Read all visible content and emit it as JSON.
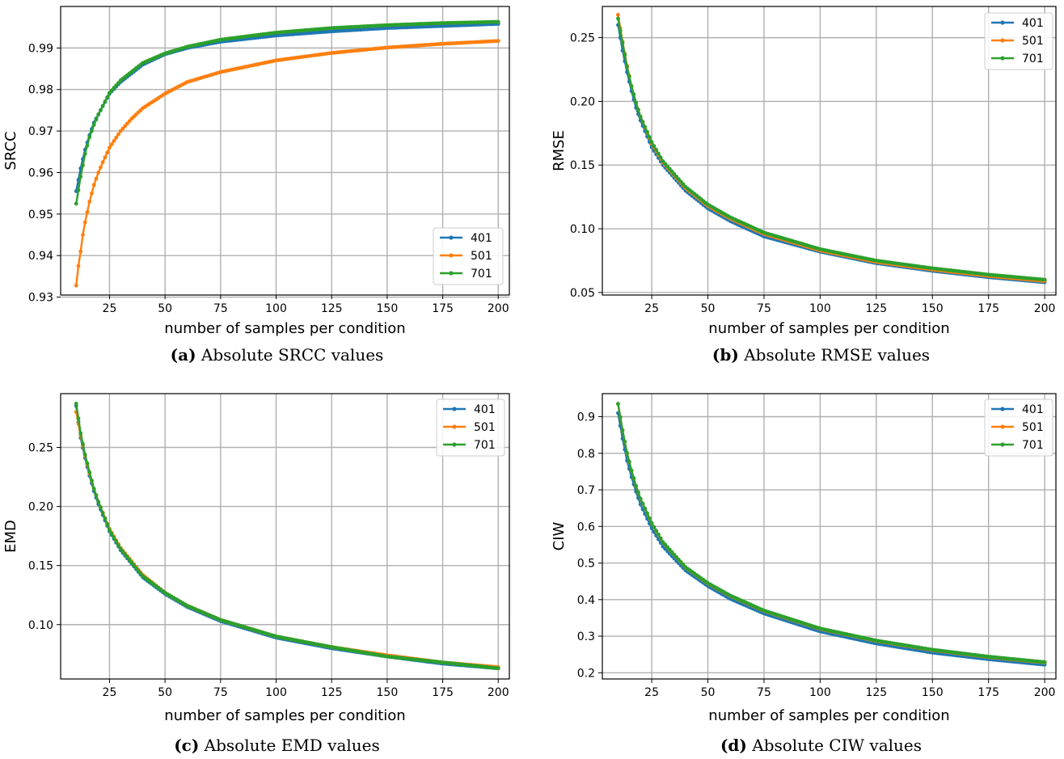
{
  "colors": {
    "401": "#1f77b4",
    "501": "#ff7f0e",
    "701": "#2ca02c"
  },
  "chart_data": [
    {
      "id": "a",
      "type": "line",
      "caption": {
        "tag": "(a)",
        "text": "Absolute SRCC values"
      },
      "xlabel": "number of samples per condition",
      "ylabel": "SRCC",
      "xlim": [
        3,
        205
      ],
      "ylim": [
        0.9305,
        1.0
      ],
      "xticks": [
        25,
        50,
        75,
        100,
        125,
        150,
        175,
        200
      ],
      "yticks": [
        0.93,
        0.94,
        0.95,
        0.96,
        0.97,
        0.98,
        0.99
      ],
      "ytick_labels": [
        "0.93",
        "0.94",
        "0.95",
        "0.96",
        "0.97",
        "0.98",
        "0.99"
      ],
      "grid": true,
      "legend_position": "lower-right",
      "x_range": [
        10,
        200
      ],
      "series": [
        {
          "name": "401",
          "key": "401",
          "x": [
            10,
            12,
            14,
            16,
            18,
            20,
            25,
            30,
            40,
            50,
            60,
            75,
            100,
            125,
            150,
            175,
            200
          ],
          "y": [
            0.9555,
            0.961,
            0.9655,
            0.969,
            0.972,
            0.974,
            0.979,
            0.9818,
            0.986,
            0.9885,
            0.99,
            0.9915,
            0.993,
            0.994,
            0.9948,
            0.9953,
            0.9958
          ]
        },
        {
          "name": "501",
          "key": "501",
          "x": [
            10,
            11,
            12,
            13,
            14,
            15,
            16,
            18,
            20,
            22,
            25,
            30,
            35,
            40,
            50,
            60,
            75,
            100,
            125,
            150,
            175,
            200
          ],
          "y": [
            0.9328,
            0.9375,
            0.941,
            0.945,
            0.948,
            0.9505,
            0.953,
            0.957,
            0.96,
            0.9625,
            0.966,
            0.97,
            0.973,
            0.9755,
            0.979,
            0.9818,
            0.9842,
            0.987,
            0.9888,
            0.9901,
            0.991,
            0.9917
          ]
        },
        {
          "name": "701",
          "key": "701",
          "x": [
            10,
            12,
            14,
            16,
            18,
            20,
            25,
            30,
            40,
            50,
            60,
            75,
            100,
            125,
            150,
            175,
            200
          ],
          "y": [
            0.9525,
            0.959,
            0.9645,
            0.9685,
            0.9715,
            0.974,
            0.9792,
            0.9822,
            0.9864,
            0.9887,
            0.9903,
            0.992,
            0.9937,
            0.9948,
            0.9955,
            0.996,
            0.9963
          ]
        }
      ]
    },
    {
      "id": "b",
      "type": "line",
      "caption": {
        "tag": "(b)",
        "text": "Absolute RMSE values"
      },
      "xlabel": "number of samples per condition",
      "ylabel": "RMSE",
      "xlim": [
        3,
        205
      ],
      "ylim": [
        0.048,
        0.2745
      ],
      "xticks": [
        25,
        50,
        75,
        100,
        125,
        150,
        175,
        200
      ],
      "yticks": [
        0.05,
        0.1,
        0.15,
        0.2,
        0.25
      ],
      "ytick_labels": [
        "0.05",
        "0.10",
        "0.15",
        "0.20",
        "0.25"
      ],
      "grid": true,
      "legend_position": "upper-right",
      "x_range": [
        10,
        200
      ],
      "series": [
        {
          "name": "401",
          "key": "401",
          "x": [
            10,
            12,
            14,
            16,
            18,
            20,
            25,
            30,
            40,
            50,
            60,
            75,
            100,
            125,
            150,
            175,
            200
          ],
          "y": [
            0.26,
            0.24,
            0.223,
            0.208,
            0.195,
            0.185,
            0.164,
            0.15,
            0.13,
            0.116,
            0.106,
            0.094,
            0.082,
            0.073,
            0.067,
            0.062,
            0.058
          ]
        },
        {
          "name": "501",
          "key": "501",
          "x": [
            10,
            12,
            14,
            16,
            18,
            20,
            25,
            30,
            40,
            50,
            60,
            75,
            100,
            125,
            150,
            175,
            200
          ],
          "y": [
            0.268,
            0.247,
            0.228,
            0.212,
            0.199,
            0.188,
            0.167,
            0.152,
            0.132,
            0.118,
            0.108,
            0.096,
            0.083,
            0.074,
            0.068,
            0.063,
            0.059
          ]
        },
        {
          "name": "701",
          "key": "701",
          "x": [
            10,
            12,
            14,
            16,
            18,
            20,
            25,
            30,
            40,
            50,
            60,
            75,
            100,
            125,
            150,
            175,
            200
          ],
          "y": [
            0.265,
            0.246,
            0.227,
            0.212,
            0.199,
            0.188,
            0.168,
            0.153,
            0.133,
            0.119,
            0.109,
            0.097,
            0.084,
            0.075,
            0.069,
            0.064,
            0.06
          ]
        }
      ]
    },
    {
      "id": "c",
      "type": "line",
      "caption": {
        "tag": "(c)",
        "text": "Absolute EMD values"
      },
      "xlabel": "number of samples per condition",
      "ylabel": "EMD",
      "xlim": [
        3,
        205
      ],
      "ylim": [
        0.054,
        0.2955
      ],
      "xticks": [
        25,
        50,
        75,
        100,
        125,
        150,
        175,
        200
      ],
      "yticks": [
        0.1,
        0.15,
        0.2,
        0.25
      ],
      "ytick_labels": [
        "0.10",
        "0.15",
        "0.20",
        "0.25"
      ],
      "grid": true,
      "legend_position": "upper-right",
      "x_range": [
        10,
        200
      ],
      "series": [
        {
          "name": "401",
          "key": "401",
          "x": [
            10,
            12,
            14,
            16,
            18,
            20,
            25,
            30,
            40,
            50,
            60,
            75,
            100,
            125,
            150,
            175,
            200
          ],
          "y": [
            0.285,
            0.258,
            0.241,
            0.226,
            0.213,
            0.202,
            0.179,
            0.163,
            0.14,
            0.126,
            0.115,
            0.103,
            0.089,
            0.08,
            0.073,
            0.067,
            0.063
          ]
        },
        {
          "name": "501",
          "key": "501",
          "x": [
            10,
            12,
            14,
            16,
            18,
            20,
            25,
            30,
            40,
            50,
            60,
            75,
            100,
            125,
            150,
            175,
            200
          ],
          "y": [
            0.28,
            0.26,
            0.243,
            0.228,
            0.215,
            0.204,
            0.181,
            0.165,
            0.142,
            0.127,
            0.116,
            0.104,
            0.09,
            0.081,
            0.074,
            0.068,
            0.064
          ]
        },
        {
          "name": "701",
          "key": "701",
          "x": [
            10,
            12,
            14,
            16,
            18,
            20,
            25,
            30,
            40,
            50,
            60,
            75,
            100,
            125,
            150,
            175,
            200
          ],
          "y": [
            0.287,
            0.262,
            0.244,
            0.229,
            0.215,
            0.204,
            0.18,
            0.164,
            0.141,
            0.127,
            0.116,
            0.104,
            0.09,
            0.081,
            0.073,
            0.068,
            0.063
          ]
        }
      ]
    },
    {
      "id": "d",
      "type": "line",
      "caption": {
        "tag": "(d)",
        "text": "Absolute CIW values"
      },
      "xlabel": "number of samples per condition",
      "ylabel": "CIW",
      "xlim": [
        3,
        205
      ],
      "ylim": [
        0.183,
        0.963
      ],
      "xticks": [
        25,
        50,
        75,
        100,
        125,
        150,
        175,
        200
      ],
      "yticks": [
        0.2,
        0.3,
        0.4,
        0.5,
        0.6,
        0.7,
        0.8,
        0.9
      ],
      "ytick_labels": [
        "0.2",
        "0.3",
        "0.4",
        "0.5",
        "0.6",
        "0.7",
        "0.8",
        "0.9"
      ],
      "grid": true,
      "legend_position": "upper-right",
      "x_range": [
        10,
        200
      ],
      "series": [
        {
          "name": "401",
          "key": "401",
          "x": [
            10,
            12,
            14,
            16,
            18,
            20,
            25,
            30,
            40,
            50,
            60,
            75,
            100,
            125,
            150,
            175,
            200
          ],
          "y": [
            0.91,
            0.84,
            0.78,
            0.735,
            0.695,
            0.66,
            0.595,
            0.545,
            0.48,
            0.437,
            0.402,
            0.362,
            0.313,
            0.28,
            0.255,
            0.237,
            0.222
          ]
        },
        {
          "name": "501",
          "key": "501",
          "x": [
            10,
            12,
            14,
            16,
            18,
            20,
            25,
            30,
            40,
            50,
            60,
            75,
            100,
            125,
            150,
            175,
            200
          ],
          "y": [
            0.935,
            0.862,
            0.8,
            0.752,
            0.71,
            0.675,
            0.608,
            0.556,
            0.488,
            0.444,
            0.41,
            0.369,
            0.32,
            0.287,
            0.262,
            0.243,
            0.228
          ]
        },
        {
          "name": "701",
          "key": "701",
          "x": [
            10,
            12,
            14,
            16,
            18,
            20,
            25,
            30,
            40,
            50,
            60,
            75,
            100,
            125,
            150,
            175,
            200
          ],
          "y": [
            0.935,
            0.863,
            0.801,
            0.753,
            0.711,
            0.676,
            0.609,
            0.557,
            0.489,
            0.445,
            0.411,
            0.37,
            0.321,
            0.288,
            0.263,
            0.244,
            0.229
          ]
        }
      ]
    }
  ]
}
